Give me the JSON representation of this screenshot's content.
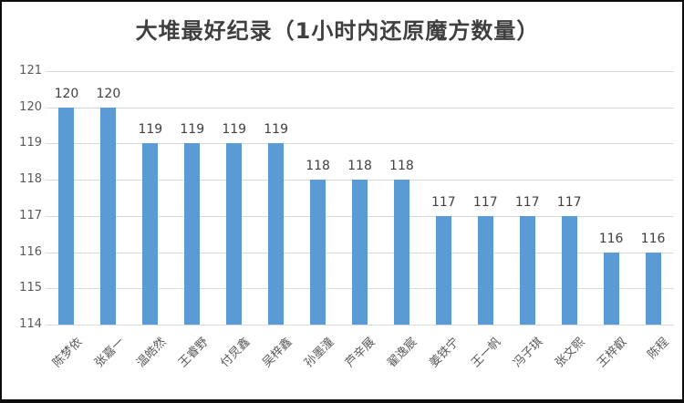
{
  "chart_data": {
    "type": "bar",
    "title": "大堆最好纪录（1小时内还原魔方数量）",
    "categories": [
      "陈梦依",
      "张嘉一",
      "温皓然",
      "王睿野",
      "付炅鑫",
      "吴梓鑫",
      "孙墨潼",
      "芦辛展",
      "翟逸宸",
      "姜铁宁",
      "王一帆",
      "冯子琪",
      "张文熙",
      "王梓叡",
      "陈程"
    ],
    "values": [
      120,
      120,
      119,
      119,
      119,
      119,
      118,
      118,
      118,
      117,
      117,
      117,
      117,
      116,
      116
    ],
    "xlabel": "",
    "ylabel": "",
    "ylim": [
      114,
      121
    ],
    "yticks": [
      114,
      115,
      116,
      117,
      118,
      119,
      120,
      121
    ],
    "grid": true,
    "legend": "none",
    "data_labels": true,
    "bar_color": "#5B9BD5",
    "gridline_color": "#d9d9d9",
    "axis_label_color": "#595959",
    "value_label_color": "#404040",
    "title_color": "#3f3f3f",
    "background_color": "#ffffff",
    "border_color": "#0d0d0d",
    "x_label_rotation_deg": 45
  }
}
